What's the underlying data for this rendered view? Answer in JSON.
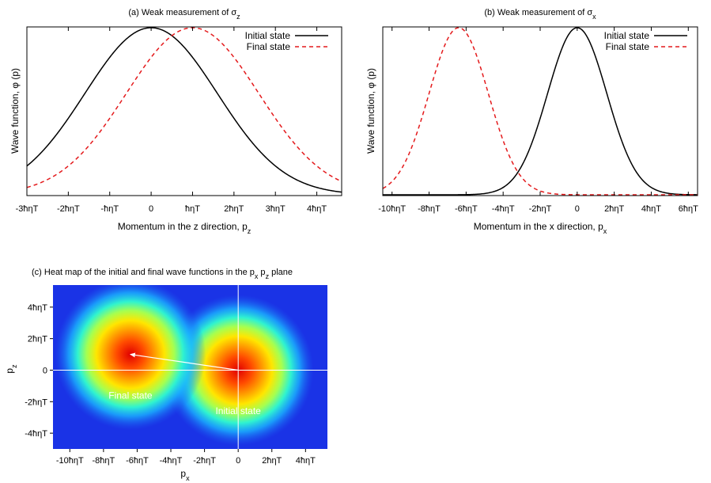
{
  "chart_data": [
    {
      "id": "a",
      "type": "line",
      "title": "(a) Weak measurement of σ",
      "title_sub": "z",
      "xlabel": "Momentum in the z direction, p",
      "xlabel_sub": "z",
      "ylabel": "Wave function, φ (p)",
      "xlim": [
        -3.0,
        4.6
      ],
      "ylim": [
        0,
        1.0
      ],
      "x_ticks": [
        {
          "v": -3,
          "label": "-3ħηT"
        },
        {
          "v": -2,
          "label": "-2ħηT"
        },
        {
          "v": -1,
          "label": "-ħηT"
        },
        {
          "v": 0,
          "label": "0"
        },
        {
          "v": 1,
          "label": "ħηT"
        },
        {
          "v": 2,
          "label": "2ħηT"
        },
        {
          "v": 3,
          "label": "3ħηT"
        },
        {
          "v": 4,
          "label": "4ħηT"
        }
      ],
      "series": [
        {
          "name": "Initial state",
          "color": "#000000",
          "dash": "solid",
          "center": 0.0,
          "sigma": 1.6
        },
        {
          "name": "Final state",
          "color": "#e41a1c",
          "dash": "dashed",
          "center": 1.0,
          "sigma": 1.6
        }
      ],
      "legend": "top-right"
    },
    {
      "id": "b",
      "type": "line",
      "title": "(b) Weak measurement of σ",
      "title_sub": "x",
      "xlabel": "Momentum in the x direction, p",
      "xlabel_sub": "x",
      "ylabel": "Wave function, φ (p)",
      "xlim": [
        -10.5,
        6.5
      ],
      "ylim": [
        0,
        1.0
      ],
      "x_ticks": [
        {
          "v": -10,
          "label": "-10ħηT"
        },
        {
          "v": -8,
          "label": "-8ħηT"
        },
        {
          "v": -6,
          "label": "-6ħηT"
        },
        {
          "v": -4,
          "label": "-4ħηT"
        },
        {
          "v": -2,
          "label": "-2ħηT"
        },
        {
          "v": 0,
          "label": "0"
        },
        {
          "v": 2,
          "label": "2ħηT"
        },
        {
          "v": 4,
          "label": "4ħηT"
        },
        {
          "v": 6,
          "label": "6ħηT"
        }
      ],
      "series": [
        {
          "name": "Initial state",
          "color": "#000000",
          "dash": "solid",
          "center": 0.0,
          "sigma": 1.6
        },
        {
          "name": "Final state",
          "color": "#e41a1c",
          "dash": "dashed",
          "center": -6.4,
          "sigma": 1.6
        }
      ],
      "legend": "top-right"
    },
    {
      "id": "c",
      "type": "heatmap",
      "title": "(c) Heat map of the initial and final wave functions in the p",
      "title_sub1": "x",
      "title_mid": " p",
      "title_sub2": "z",
      "title_end": " plane",
      "xlabel": "p",
      "xlabel_sub": "x",
      "ylabel": "p",
      "ylabel_sub": "z",
      "xlim": [
        -11,
        5.3
      ],
      "ylim": [
        -5,
        5.4
      ],
      "x_ticks": [
        {
          "v": -10,
          "label": "-10ħηT"
        },
        {
          "v": -8,
          "label": "-8ħηT"
        },
        {
          "v": -6,
          "label": "-6ħηT"
        },
        {
          "v": -4,
          "label": "-4ħηT"
        },
        {
          "v": -2,
          "label": "-2ħηT"
        },
        {
          "v": 0,
          "label": "0"
        },
        {
          "v": 2,
          "label": "2ħηT"
        },
        {
          "v": 4,
          "label": "4ħηT"
        }
      ],
      "y_ticks": [
        {
          "v": 4,
          "label": "4ħηT"
        },
        {
          "v": 2,
          "label": "2ħηT"
        },
        {
          "v": 0,
          "label": "0"
        },
        {
          "v": -2,
          "label": "-2ħηT"
        },
        {
          "v": -4,
          "label": "-4ħηT"
        }
      ],
      "blobs": [
        {
          "name": "Initial state",
          "px": 0.0,
          "pz": 0.0,
          "sigma": 1.6
        },
        {
          "name": "Final state",
          "px": -6.4,
          "pz": 1.0,
          "sigma": 1.6
        }
      ],
      "arrow": {
        "from": [
          0.0,
          0.0
        ],
        "to": [
          -6.4,
          1.0
        ]
      },
      "annotations": [
        {
          "text": "Final state",
          "px": -6.4,
          "pz": -1.8
        },
        {
          "text": "Initial state",
          "px": 0.0,
          "pz": -2.8
        }
      ],
      "crosshair": {
        "px": 0,
        "pz": 0
      },
      "colormap": "jet"
    }
  ]
}
